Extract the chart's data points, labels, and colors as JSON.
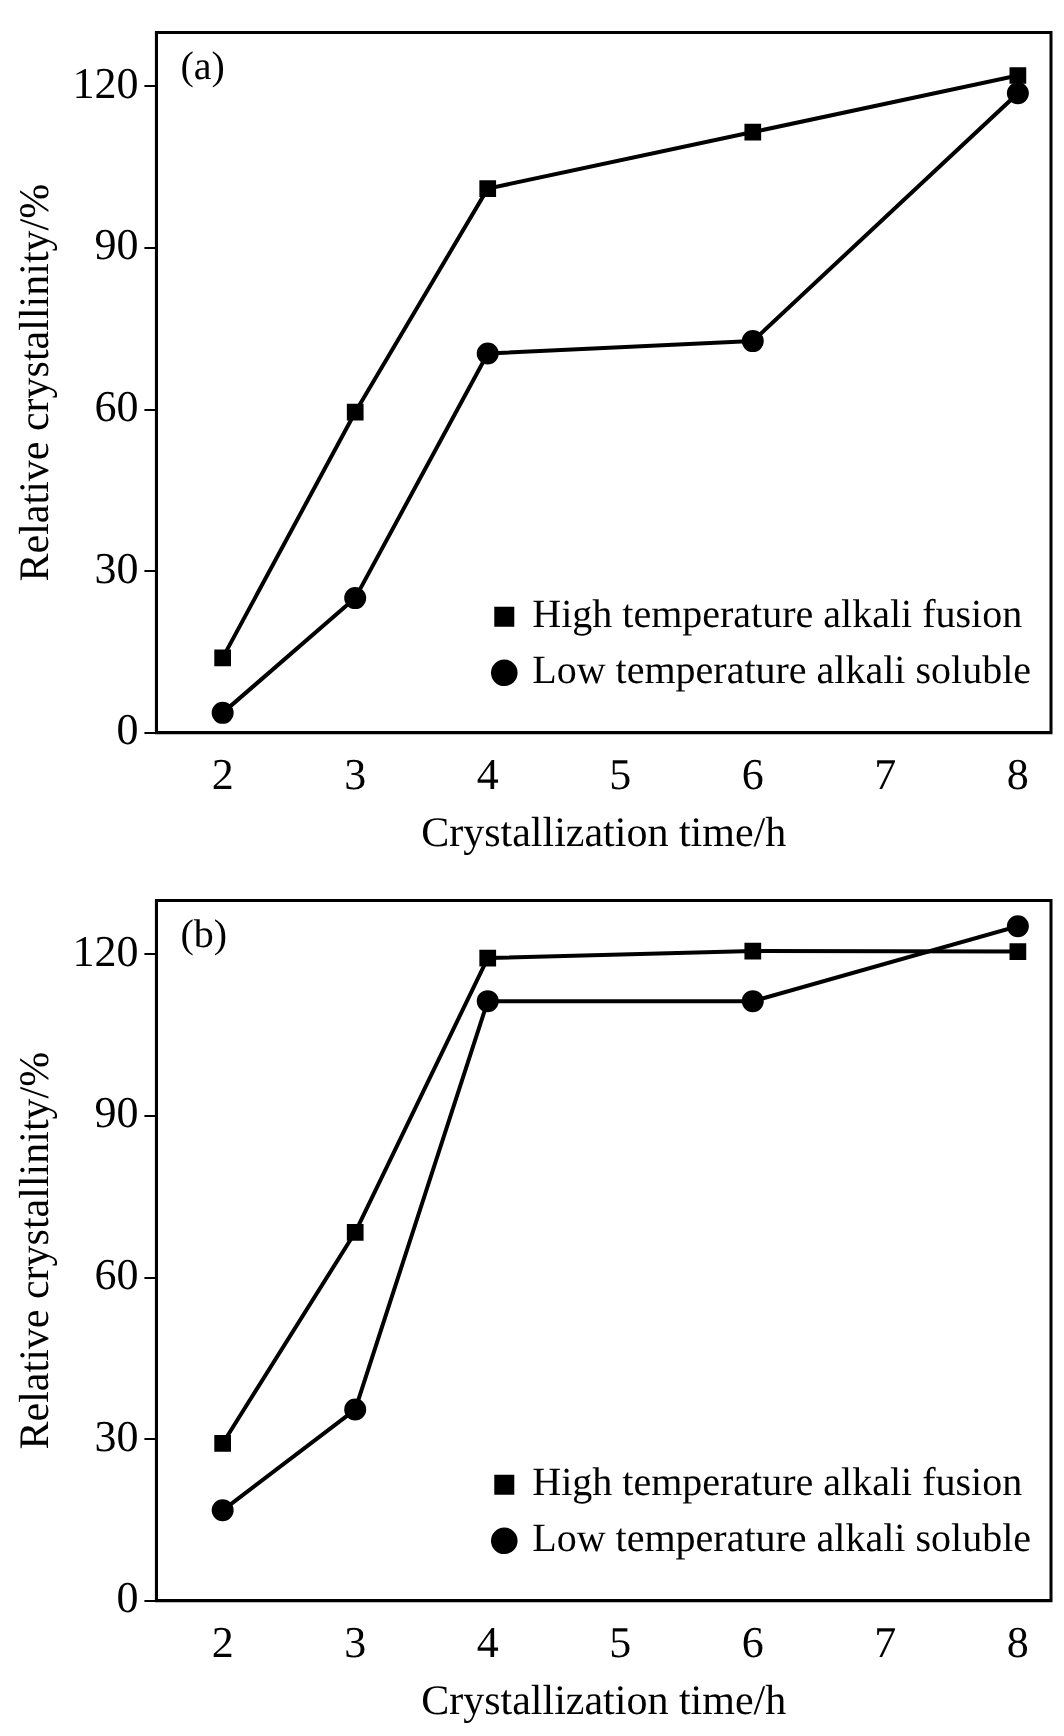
{
  "chart_data": [
    {
      "type": "line",
      "xlabel": "Crystallization time/h",
      "ylabel": "Relative crystallinity/%",
      "annotations": [
        "(a)"
      ],
      "x": [
        2,
        3,
        4,
        6,
        8
      ],
      "xlim": [
        1.5,
        8.25
      ],
      "xticks": [
        2,
        3,
        4,
        5,
        6,
        7,
        8
      ],
      "ylim": [
        0,
        130
      ],
      "yticks": [
        0,
        30,
        60,
        90,
        120
      ],
      "legend": "bottom right",
      "grid": false,
      "series": [
        {
          "name": "High temperature alkali fusion",
          "color": "#000000",
          "marker": "square",
          "values": [
            13.9,
            59.5,
            101,
            111.5,
            122
          ]
        },
        {
          "name": "Low temperature alkali soluble",
          "color": "#000000",
          "marker": "circle",
          "values": [
            3.7,
            25,
            70.4,
            72.7,
            118.7
          ]
        }
      ]
    },
    {
      "type": "line",
      "xlabel": "Crystallization time/h",
      "ylabel": "Relative crystallinity/%",
      "annotations": [
        "(b)"
      ],
      "x": [
        2,
        3,
        4,
        6,
        8
      ],
      "xlim": [
        1.5,
        8.25
      ],
      "xticks": [
        2,
        3,
        4,
        5,
        6,
        7,
        8
      ],
      "ylim": [
        0,
        130
      ],
      "yticks": [
        0,
        30,
        60,
        90,
        120
      ],
      "legend": "bottom right",
      "grid": false,
      "series": [
        {
          "name": "High temperature alkali fusion",
          "color": "#000000",
          "marker": "square",
          "values": [
            29.2,
            68.4,
            119.3,
            120.6,
            120.5
          ]
        },
        {
          "name": "Low temperature alkali soluble",
          "color": "#000000",
          "marker": "circle",
          "values": [
            16.8,
            35.5,
            111.3,
            111.3,
            125.2
          ]
        }
      ]
    }
  ]
}
